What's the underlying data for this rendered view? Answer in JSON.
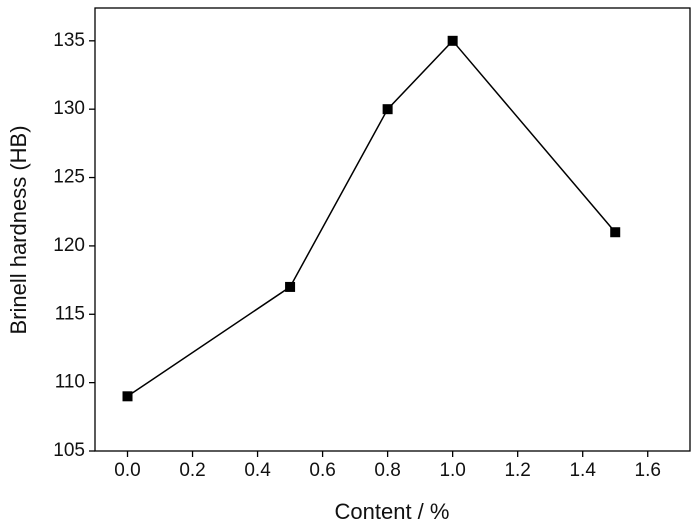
{
  "chart_data": {
    "type": "line",
    "x_label": "Content / %",
    "y_label": "Brinell hardness (HB)",
    "x": [
      0,
      0.5,
      0.8,
      1.0,
      1.5
    ],
    "series": [
      {
        "values": [
          109,
          117,
          130,
          135,
          121
        ],
        "color": "#000000"
      }
    ],
    "xlim": [
      -0.1,
      1.73
    ],
    "xticks": [
      {
        "value": 0,
        "label": "0.0"
      },
      0.2,
      0.4,
      0.6,
      0.8,
      {
        "value": 1,
        "label": "1.0"
      },
      1.2,
      1.4,
      1.6
    ],
    "ylim": [
      105,
      137.4
    ],
    "yticks": [
      105,
      110,
      115,
      120,
      125,
      130,
      135
    ],
    "marker": "square",
    "grid": false
  }
}
